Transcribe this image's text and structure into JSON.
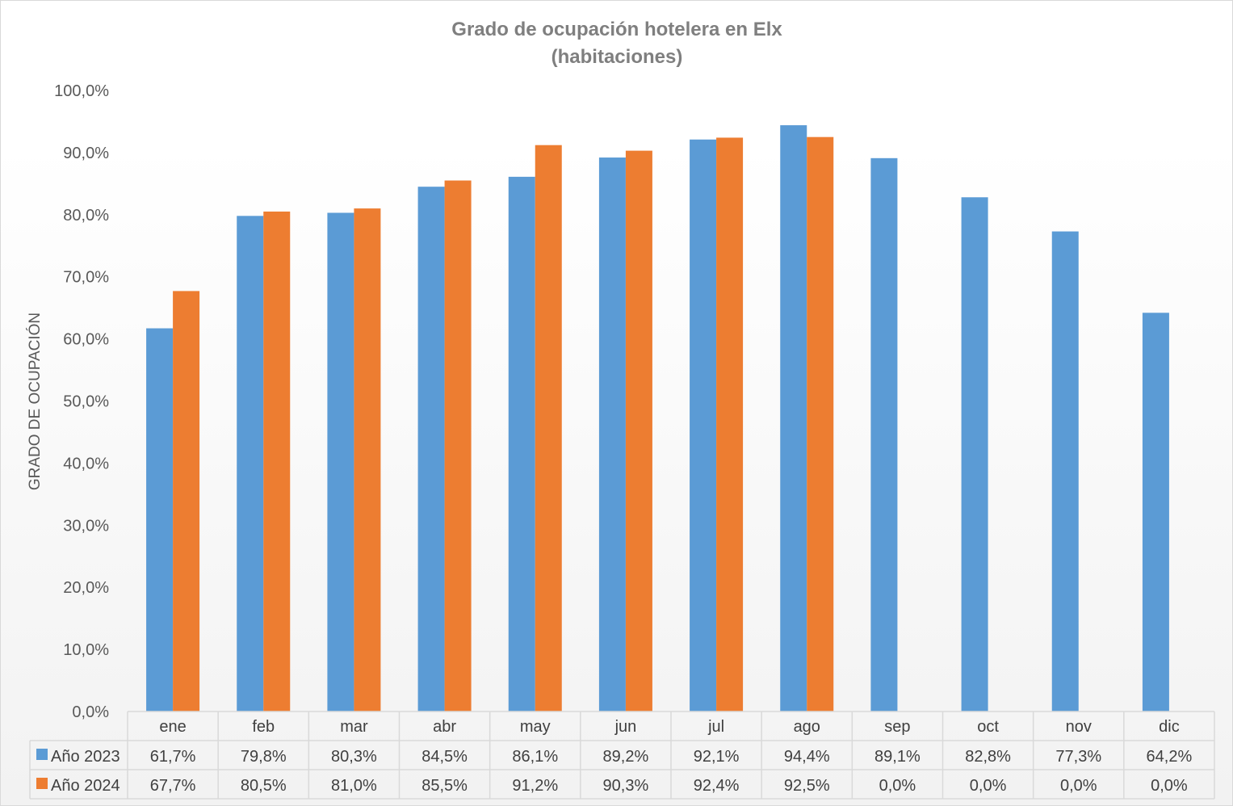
{
  "chart_data": {
    "type": "bar",
    "title": "Grado de ocupación hotelera en Elx",
    "subtitle": "(habitaciones)",
    "ylabel": "GRADO DE OCUPACIÓN",
    "xlabel": "",
    "ylim": [
      0,
      100
    ],
    "y_ticks": [
      "0,0%",
      "10,0%",
      "20,0%",
      "30,0%",
      "40,0%",
      "50,0%",
      "60,0%",
      "70,0%",
      "80,0%",
      "90,0%",
      "100,0%"
    ],
    "categories": [
      "ene",
      "feb",
      "mar",
      "abr",
      "may",
      "jun",
      "jul",
      "ago",
      "sep",
      "oct",
      "nov",
      "dic"
    ],
    "series": [
      {
        "name": "Año 2023",
        "color": "#5b9bd5",
        "values": [
          61.7,
          79.8,
          80.3,
          84.5,
          86.1,
          89.2,
          92.1,
          94.4,
          89.1,
          82.8,
          77.3,
          64.2
        ],
        "labels": [
          "61,7%",
          "79,8%",
          "80,3%",
          "84,5%",
          "86,1%",
          "89,2%",
          "92,1%",
          "94,4%",
          "89,1%",
          "82,8%",
          "77,3%",
          "64,2%"
        ]
      },
      {
        "name": "Año 2024",
        "color": "#ed7d31",
        "values": [
          67.7,
          80.5,
          81.0,
          85.5,
          91.2,
          90.3,
          92.4,
          92.5,
          0.0,
          0.0,
          0.0,
          0.0
        ],
        "labels": [
          "67,7%",
          "80,5%",
          "81,0%",
          "85,5%",
          "91,2%",
          "90,3%",
          "92,4%",
          "92,5%",
          "0,0%",
          "0,0%",
          "0,0%",
          "0,0%"
        ]
      }
    ],
    "legend": "data-table",
    "grid": false
  }
}
